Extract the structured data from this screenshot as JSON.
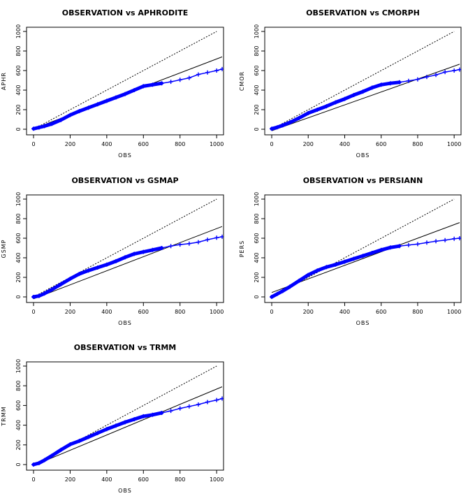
{
  "chart_data": [
    {
      "type": "scatter",
      "title": "OBSERVATION vs APHRODITE",
      "xlabel": "OBS",
      "ylabel": "APHR",
      "xlim": [
        0,
        1030
      ],
      "ylim": [
        0,
        1000
      ],
      "xticks": [
        "0",
        "200",
        "400",
        "600",
        "800",
        "1000"
      ],
      "yticks": [
        "0",
        "200",
        "400",
        "600",
        "800",
        "1000"
      ],
      "reference_line": {
        "style": "dotted",
        "points": [
          [
            0,
            0
          ],
          [
            1000,
            1000
          ]
        ]
      },
      "fit_line": {
        "style": "solid",
        "points": [
          [
            0,
            5
          ],
          [
            1030,
            740
          ]
        ]
      },
      "points_color": "#0000ff",
      "points": [
        [
          0,
          5
        ],
        [
          30,
          18
        ],
        [
          60,
          32
        ],
        [
          100,
          55
        ],
        [
          150,
          95
        ],
        [
          200,
          145
        ],
        [
          250,
          185
        ],
        [
          300,
          220
        ],
        [
          350,
          255
        ],
        [
          400,
          290
        ],
        [
          450,
          325
        ],
        [
          500,
          360
        ],
        [
          550,
          400
        ],
        [
          600,
          440
        ],
        [
          650,
          455
        ],
        [
          700,
          470
        ],
        [
          750,
          485
        ],
        [
          800,
          505
        ],
        [
          850,
          525
        ],
        [
          900,
          560
        ],
        [
          950,
          580
        ],
        [
          1000,
          600
        ],
        [
          1030,
          615
        ]
      ]
    },
    {
      "type": "scatter",
      "title": "OBSERVATION vs CMORPH",
      "xlabel": "OBS",
      "ylabel": "CMOR",
      "xlim": [
        0,
        1030
      ],
      "ylim": [
        0,
        1000
      ],
      "xticks": [
        "0",
        "200",
        "400",
        "600",
        "800",
        "1000"
      ],
      "yticks": [
        "0",
        "200",
        "400",
        "600",
        "800",
        "1000"
      ],
      "reference_line": {
        "style": "dotted",
        "points": [
          [
            0,
            0
          ],
          [
            1000,
            1000
          ]
        ]
      },
      "fit_line": {
        "style": "solid",
        "points": [
          [
            0,
            -15
          ],
          [
            1030,
            665
          ]
        ]
      },
      "points_color": "#0000ff",
      "points": [
        [
          0,
          5
        ],
        [
          30,
          20
        ],
        [
          60,
          40
        ],
        [
          100,
          70
        ],
        [
          150,
          115
        ],
        [
          200,
          165
        ],
        [
          250,
          200
        ],
        [
          300,
          235
        ],
        [
          350,
          275
        ],
        [
          400,
          310
        ],
        [
          450,
          350
        ],
        [
          500,
          385
        ],
        [
          550,
          425
        ],
        [
          600,
          455
        ],
        [
          650,
          470
        ],
        [
          700,
          480
        ],
        [
          750,
          495
        ],
        [
          800,
          510
        ],
        [
          850,
          535
        ],
        [
          900,
          555
        ],
        [
          950,
          585
        ],
        [
          1000,
          600
        ],
        [
          1030,
          610
        ]
      ]
    },
    {
      "type": "scatter",
      "title": "OBSERVATION vs GSMAP",
      "xlabel": "OBS",
      "ylabel": "GSMP",
      "xlim": [
        0,
        1030
      ],
      "ylim": [
        0,
        1000
      ],
      "xticks": [
        "0",
        "200",
        "400",
        "600",
        "800",
        "1000"
      ],
      "yticks": [
        "0",
        "200",
        "400",
        "600",
        "800",
        "1000"
      ],
      "reference_line": {
        "style": "dotted",
        "points": [
          [
            0,
            0
          ],
          [
            1000,
            1000
          ]
        ]
      },
      "fit_line": {
        "style": "solid",
        "points": [
          [
            0,
            -20
          ],
          [
            1030,
            720
          ]
        ]
      },
      "points_color": "#0000ff",
      "points": [
        [
          0,
          0
        ],
        [
          30,
          10
        ],
        [
          60,
          35
        ],
        [
          100,
          75
        ],
        [
          150,
          130
        ],
        [
          200,
          185
        ],
        [
          250,
          235
        ],
        [
          300,
          270
        ],
        [
          350,
          300
        ],
        [
          400,
          330
        ],
        [
          450,
          365
        ],
        [
          500,
          405
        ],
        [
          550,
          440
        ],
        [
          600,
          460
        ],
        [
          650,
          480
        ],
        [
          700,
          500
        ],
        [
          750,
          520
        ],
        [
          800,
          535
        ],
        [
          850,
          545
        ],
        [
          900,
          560
        ],
        [
          950,
          585
        ],
        [
          1000,
          605
        ],
        [
          1030,
          615
        ]
      ]
    },
    {
      "type": "scatter",
      "title": "OBSERVATION vs PERSIANN",
      "xlabel": "OBS",
      "ylabel": "PERS",
      "xlim": [
        0,
        1030
      ],
      "ylim": [
        0,
        1000
      ],
      "xticks": [
        "0",
        "200",
        "400",
        "600",
        "800",
        "1000"
      ],
      "yticks": [
        "0",
        "200",
        "400",
        "600",
        "800",
        "1000"
      ],
      "reference_line": {
        "style": "dotted",
        "points": [
          [
            0,
            0
          ],
          [
            1000,
            1000
          ]
        ]
      },
      "fit_line": {
        "style": "solid",
        "points": [
          [
            0,
            45
          ],
          [
            1030,
            760
          ]
        ]
      },
      "points_color": "#0000ff",
      "points": [
        [
          0,
          0
        ],
        [
          30,
          30
        ],
        [
          60,
          60
        ],
        [
          100,
          105
        ],
        [
          150,
          165
        ],
        [
          200,
          225
        ],
        [
          250,
          270
        ],
        [
          300,
          305
        ],
        [
          350,
          330
        ],
        [
          400,
          360
        ],
        [
          450,
          390
        ],
        [
          500,
          420
        ],
        [
          550,
          450
        ],
        [
          600,
          480
        ],
        [
          650,
          505
        ],
        [
          700,
          520
        ],
        [
          750,
          530
        ],
        [
          800,
          540
        ],
        [
          850,
          555
        ],
        [
          900,
          570
        ],
        [
          950,
          580
        ],
        [
          1000,
          595
        ],
        [
          1030,
          600
        ]
      ]
    },
    {
      "type": "scatter",
      "title": "OBSERVATION vs TRMM",
      "xlabel": "OBS",
      "ylabel": "TRMM",
      "xlim": [
        0,
        1030
      ],
      "ylim": [
        0,
        1000
      ],
      "xticks": [
        "0",
        "200",
        "400",
        "600",
        "800",
        "1000"
      ],
      "yticks": [
        "0",
        "200",
        "400",
        "600",
        "800",
        "1000"
      ],
      "reference_line": {
        "style": "dotted",
        "points": [
          [
            0,
            0
          ],
          [
            1000,
            1000
          ]
        ]
      },
      "fit_line": {
        "style": "solid",
        "points": [
          [
            0,
            -10
          ],
          [
            1030,
            790
          ]
        ]
      },
      "points_color": "#0000ff",
      "points": [
        [
          0,
          0
        ],
        [
          30,
          15
        ],
        [
          60,
          45
        ],
        [
          100,
          90
        ],
        [
          150,
          150
        ],
        [
          200,
          205
        ],
        [
          250,
          240
        ],
        [
          300,
          280
        ],
        [
          350,
          320
        ],
        [
          400,
          360
        ],
        [
          450,
          395
        ],
        [
          500,
          430
        ],
        [
          550,
          460
        ],
        [
          600,
          490
        ],
        [
          650,
          505
        ],
        [
          700,
          525
        ],
        [
          750,
          545
        ],
        [
          800,
          570
        ],
        [
          850,
          590
        ],
        [
          900,
          610
        ],
        [
          950,
          635
        ],
        [
          1000,
          655
        ],
        [
          1030,
          670
        ]
      ]
    }
  ]
}
